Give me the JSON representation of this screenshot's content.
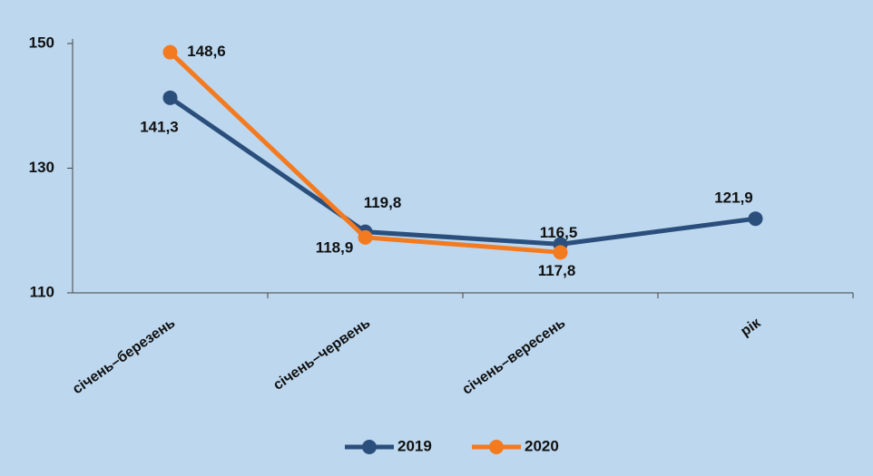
{
  "chart_data": {
    "type": "line",
    "categories": [
      "січень–березень",
      "січень–червень",
      "січень–вересень",
      "рік"
    ],
    "series": [
      {
        "name": "2019",
        "color": "#2b4f7c",
        "values": [
          141.3,
          119.8,
          117.8,
          121.9
        ],
        "value_labels": [
          "141,3",
          "119,8",
          "117,8",
          "121,9"
        ]
      },
      {
        "name": "2020",
        "color": "#f47a20",
        "values": [
          148.6,
          118.9,
          116.5,
          null
        ],
        "value_labels": [
          "148,6",
          "118,9",
          "116,5",
          null
        ]
      }
    ],
    "ylim": [
      110,
      150
    ],
    "yticks": [
      110,
      130,
      150
    ],
    "legend": "bottom"
  }
}
